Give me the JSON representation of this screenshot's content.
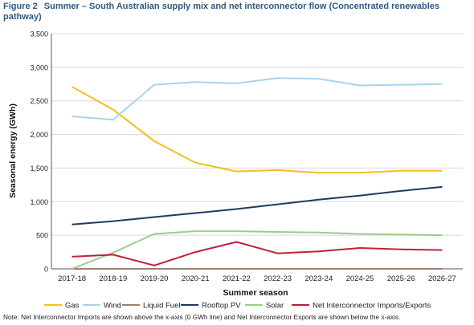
{
  "figure": {
    "label": "Figure 2",
    "title": "Summer – South Australian supply mix and net interconnector flow (Concentrated renewables pathway)",
    "note": "Note: Net Interconnector Imports are shown above the x-axis (0 GWh line) and Net Interconnector Exports are shown below the x-axis."
  },
  "chart_data": {
    "type": "line",
    "title": "Summer – South Australian supply mix and net interconnector flow (Concentrated renewables pathway)",
    "xlabel": "Summer season",
    "ylabel": "Seasonal energy (GWh)",
    "ylim": [
      0,
      3500
    ],
    "yticks": [
      0,
      500,
      1000,
      1500,
      2000,
      2500,
      3000,
      3500
    ],
    "ytick_labels": [
      "0",
      "500",
      "1,000",
      "1,500",
      "2,000",
      "2,500",
      "3,000",
      "3,500"
    ],
    "grid": true,
    "legend_position": "bottom",
    "categories": [
      "2017-18",
      "2018-19",
      "2019-20",
      "2020-21",
      "2021-22",
      "2022-23",
      "2023-24",
      "2024-25",
      "2025-26",
      "2026-27"
    ],
    "series": [
      {
        "name": "Gas",
        "color": "#f5be1e",
        "values": [
          2710,
          2370,
          1900,
          1580,
          1450,
          1470,
          1430,
          1430,
          1460,
          1460
        ]
      },
      {
        "name": "Wind",
        "color": "#a9d3ea",
        "values": [
          2270,
          2220,
          2740,
          2780,
          2760,
          2840,
          2830,
          2730,
          2740,
          2750
        ]
      },
      {
        "name": "Liquid Fuel",
        "color": "#9e7e6b",
        "values": [
          0,
          0,
          0,
          0,
          0,
          0,
          0,
          0,
          0,
          0
        ]
      },
      {
        "name": "Rooftop PV",
        "color": "#1f3b5e",
        "values": [
          660,
          710,
          770,
          830,
          890,
          960,
          1030,
          1090,
          1160,
          1220
        ]
      },
      {
        "name": "Solar",
        "color": "#9ccc8c",
        "values": [
          0,
          240,
          520,
          560,
          560,
          550,
          540,
          520,
          510,
          500
        ]
      },
      {
        "name": "Net Interconnector Imports/Exports",
        "color": "#c0203a",
        "values": [
          180,
          210,
          50,
          250,
          400,
          230,
          260,
          310,
          290,
          280
        ]
      }
    ]
  }
}
